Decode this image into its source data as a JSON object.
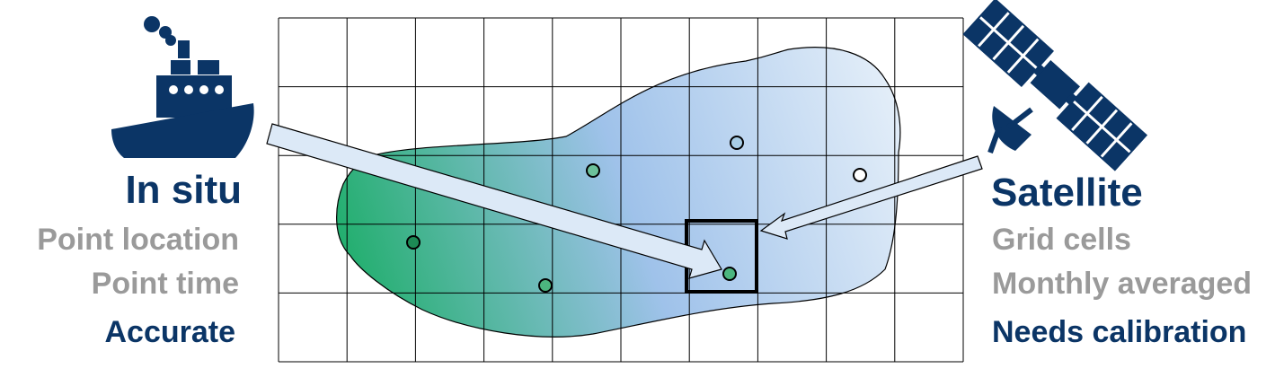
{
  "in_situ": {
    "title": "In situ",
    "line1": "Point location",
    "line2": "Point time",
    "line3": "Accurate"
  },
  "satellite": {
    "title": "Satellite",
    "line1": "Grid cells",
    "line2": "Monthly averaged",
    "line3": "Needs calibration"
  },
  "colors": {
    "navy": "#0b3566",
    "grey": "#9a9a9a",
    "green": "#1fae6b",
    "light_blue": "#a9c8ec",
    "pale_blue": "#e3eef9"
  },
  "icons": {
    "ship": "ship-icon",
    "satellite": "satellite-icon"
  }
}
